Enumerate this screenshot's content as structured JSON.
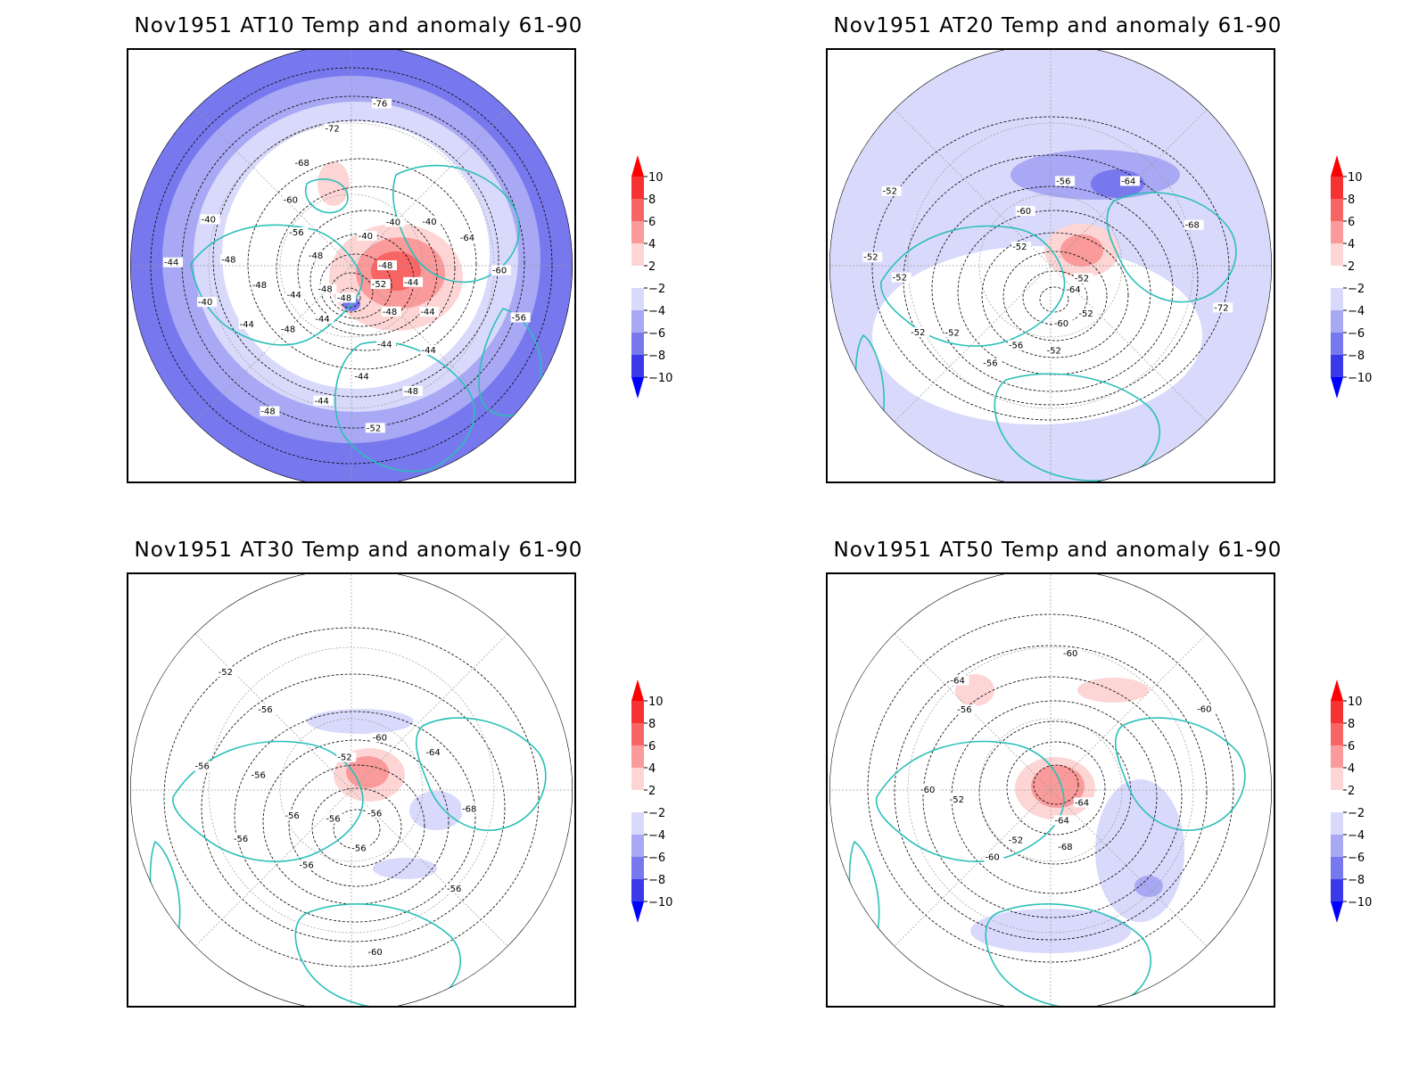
{
  "colors": {
    "coast": "#2bbfb8",
    "contour": "#000000",
    "grid": "#9a9a9a",
    "anomaly_scale": {
      "plus_8_10": "#f73232",
      "plus_6_8": "#f86565",
      "plus_4_6": "#fa9a9a",
      "plus_2_4": "#fdd5d5",
      "neutral": "#ffffff",
      "minus_2_4": "#d9d9fb",
      "minus_4_6": "#a8a8f4",
      "minus_6_8": "#7878ee",
      "minus_8_10": "#3a3aeb"
    }
  },
  "colorbar": {
    "ticks": [
      "10",
      "8",
      "6",
      "4",
      "2",
      "−2",
      "−4",
      "−6",
      "−8",
      "−10"
    ]
  },
  "panels": [
    {
      "title": "Nov1951 AT10 Temp and anomaly 61-90",
      "contour_labels": [
        "-48",
        "-44",
        "-44",
        "-44",
        "-48",
        "-52",
        "-48",
        "-44",
        "-48",
        "-44",
        "-40",
        "-44",
        "-48",
        "-56",
        "-60",
        "-68",
        "-72",
        "-76",
        "-40",
        "-40",
        "-40",
        "-64",
        "-60",
        "-56",
        "-52",
        "-48",
        "-44",
        "-44",
        "-44",
        "-48",
        "-48",
        "-44",
        "-48",
        "-48",
        "-40"
      ],
      "background_anomaly": "minus_6_8"
    },
    {
      "title": "Nov1951 AT20 Temp and anomaly 61-90",
      "contour_labels": [
        "-52",
        "-52",
        "-52",
        "-56",
        "-52",
        "-52",
        "-52",
        "-60",
        "-56",
        "-64",
        "-68",
        "-72",
        "-64",
        "-60",
        "-56",
        "-52",
        "-52",
        "-52"
      ],
      "background_anomaly": "minus_2_4"
    },
    {
      "title": "Nov1951 AT30 Temp and anomaly 61-90",
      "contour_labels": [
        "-56",
        "-56",
        "-56",
        "-56",
        "-56",
        "-52",
        "-52",
        "-60",
        "-64",
        "-68",
        "-56",
        "-60",
        "-56",
        "-56",
        "-56",
        "-56"
      ],
      "background_anomaly": "neutral"
    },
    {
      "title": "Nov1951 AT50 Temp and anomaly 61-90",
      "contour_labels": [
        "-64",
        "-52",
        "-52",
        "-56",
        "-60",
        "-60",
        "-64",
        "-68",
        "-60",
        "-60",
        "-64"
      ],
      "background_anomaly": "neutral"
    }
  ]
}
